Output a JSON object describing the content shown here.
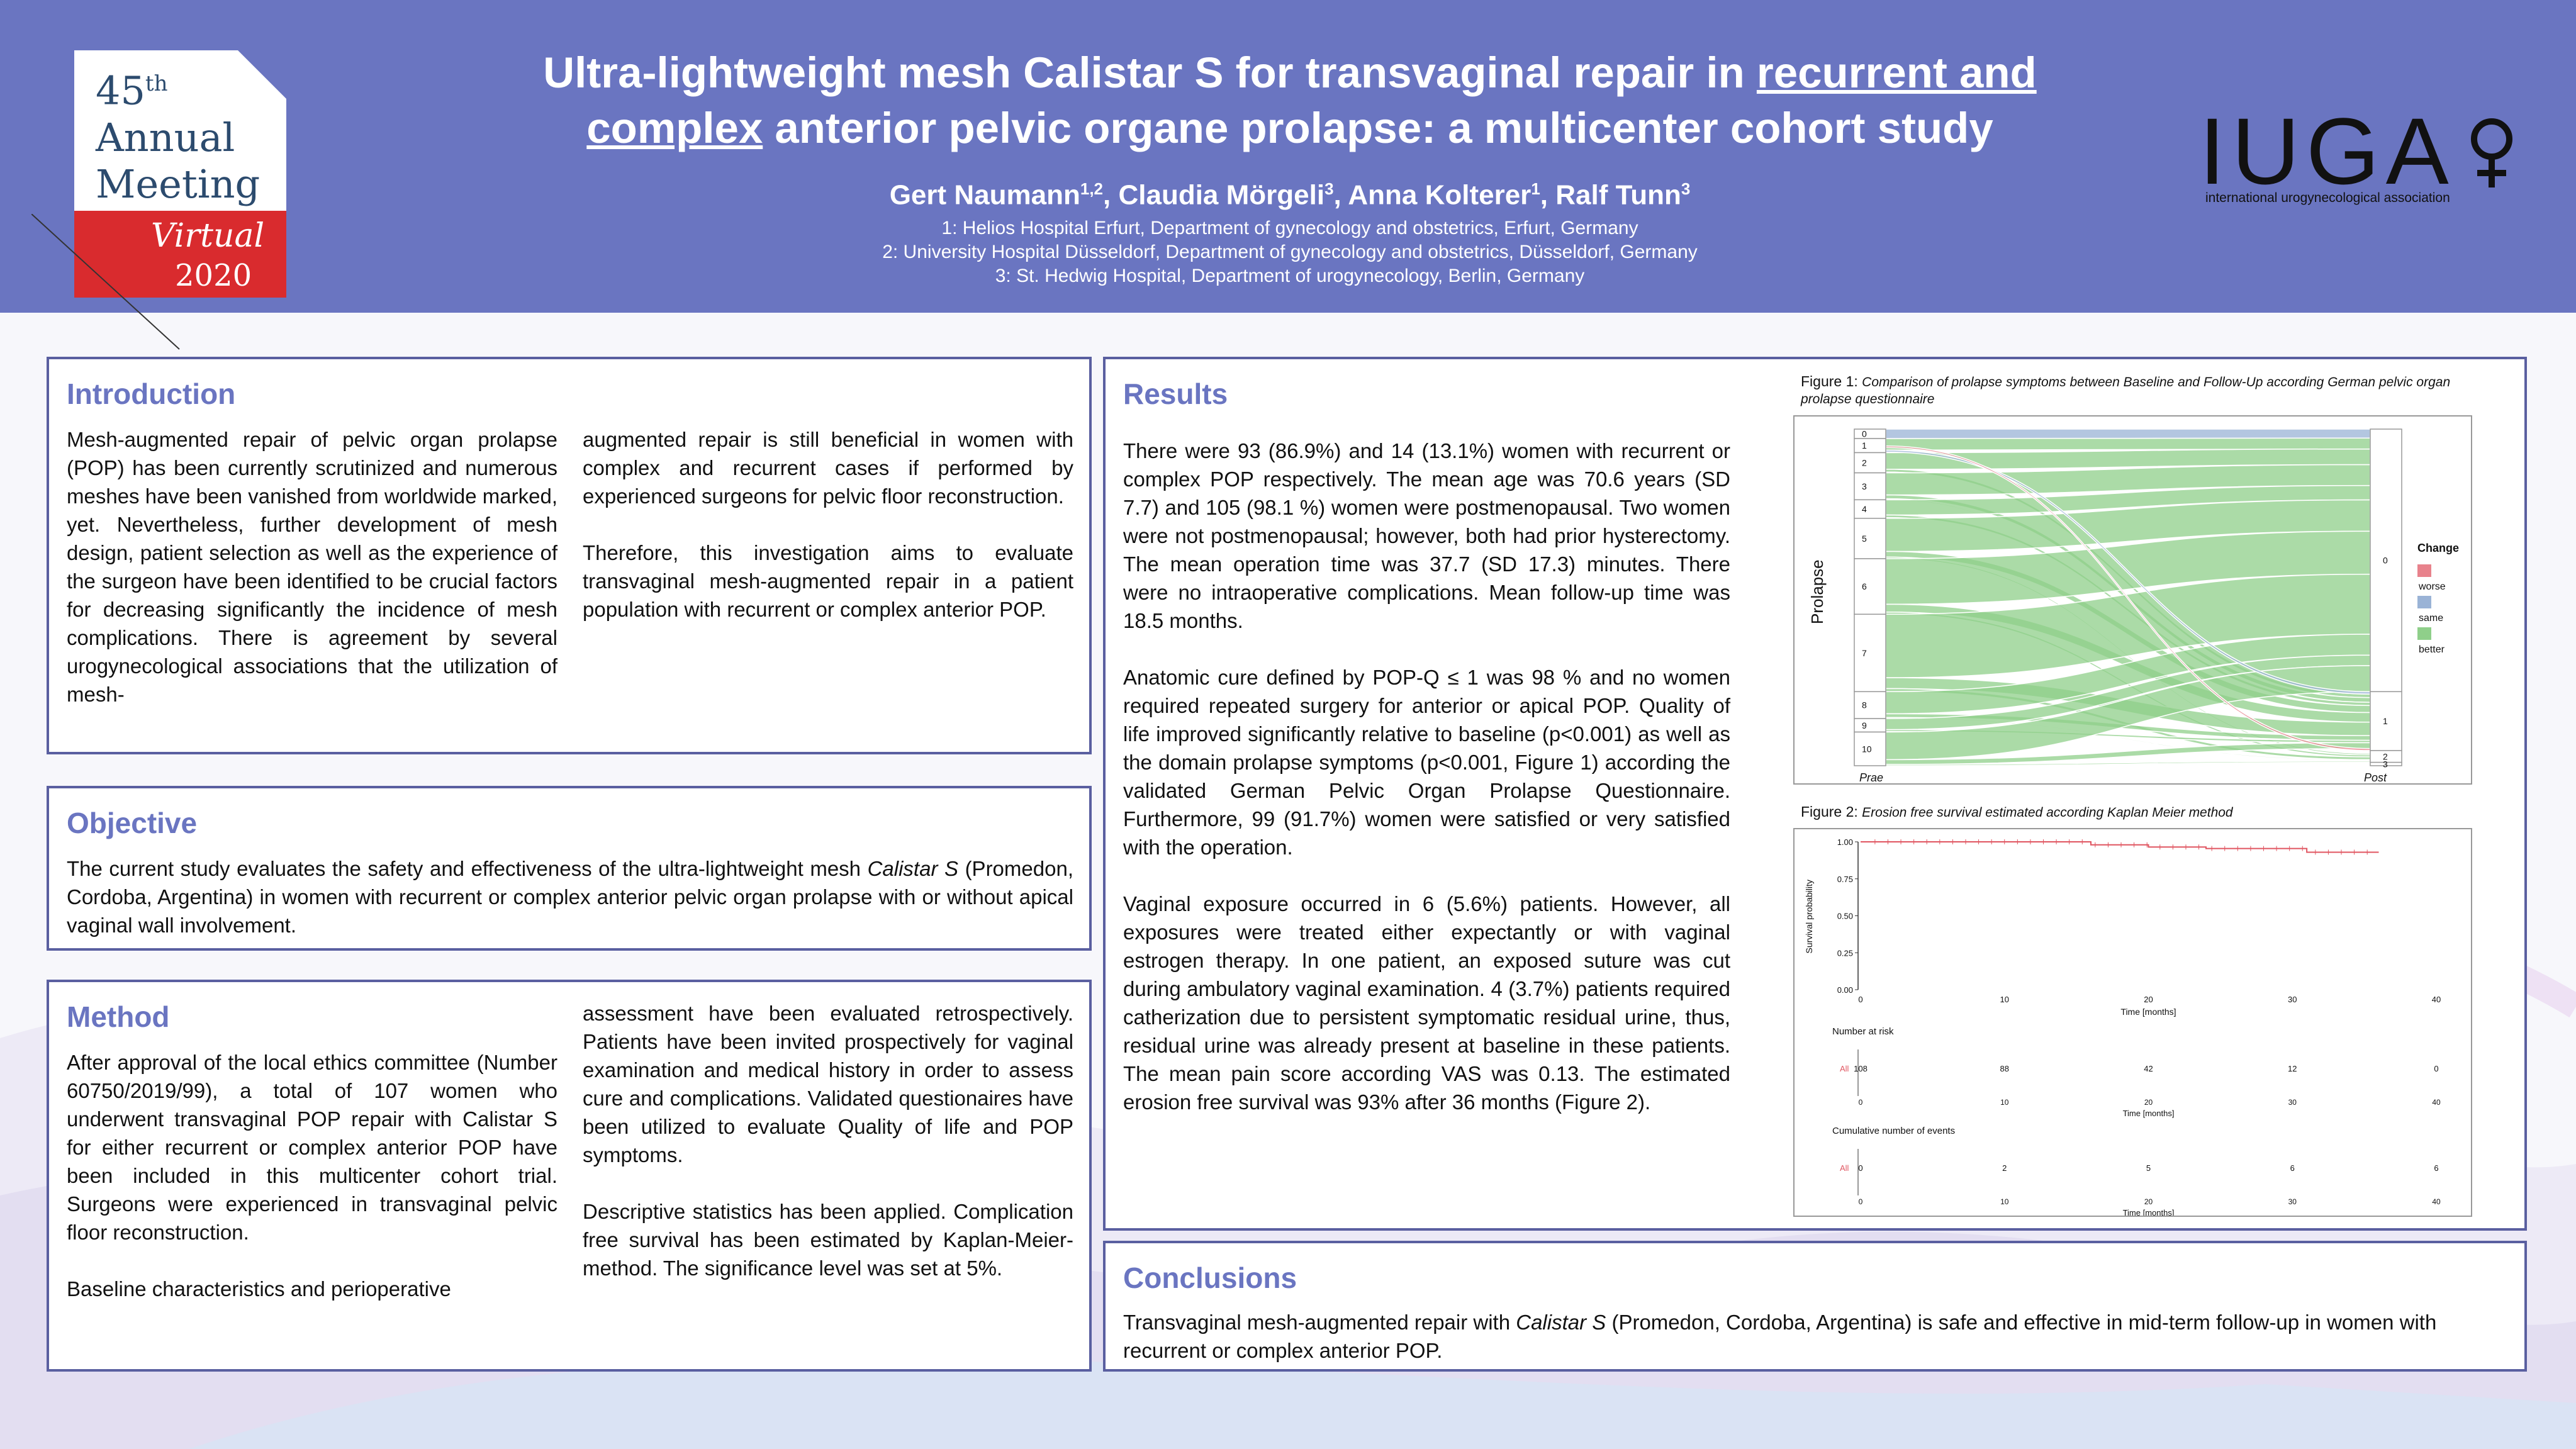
{
  "meeting": {
    "number": "45",
    "ordinal": "th",
    "line1": "Annual",
    "line2": "Meeting",
    "mode": "Virtual",
    "year": "2020"
  },
  "title": {
    "part1": "Ultra-lightweight mesh Calistar S for transvaginal repair in ",
    "underlined1": "recurrent and",
    "underlined2": "complex",
    "part2": " anterior pelvic organe prolapse: a multicenter cohort study"
  },
  "authors": [
    {
      "name": "Gert Naumann",
      "sup": "1,2"
    },
    {
      "name": "Claudia Mörgeli",
      "sup": "3"
    },
    {
      "name": "Anna Kolterer",
      "sup": "1"
    },
    {
      "name": "Ralf Tunn",
      "sup": "3"
    }
  ],
  "affiliations": [
    "1: Helios Hospital Erfurt, Department of gynecology and obstetrics, Erfurt, Germany",
    "2: University Hospital Düsseldorf, Department of gynecology and obstetrics, Düsseldorf, Germany",
    "3: St. Hedwig Hospital, Department of urogynecology, Berlin, Germany"
  ],
  "iuga": {
    "name": "IUGA",
    "tagline": "international urogynecological association"
  },
  "introduction": {
    "heading": "Introduction",
    "col1": "Mesh-augmented repair of pelvic organ prolapse (POP) has been currently scrutinized and numerous meshes have been vanished from worldwide marked, yet. Nevertheless, further development of mesh design, patient selection as well as the experience of the surgeon have been identified to be crucial factors for decreasing significantly the incidence of mesh complications. There is agreement by several urogynecological associations that the utilization of mesh-",
    "col2a": "augmented repair is still beneficial in women with complex and recurrent cases if performed by experienced surgeons for pelvic floor reconstruction.",
    "col2b": "Therefore, this investigation aims to evaluate transvaginal mesh-augmented repair in a patient population with recurrent or complex anterior POP."
  },
  "objective": {
    "heading": "Objective",
    "text_before": "The current study evaluates the safety and effectiveness of the ultra-lightweight mesh ",
    "text_italic": "Calistar S",
    "text_after": " (Promedon, Cordoba, Argentina) in women with recurrent or complex anterior pelvic organ prolapse with or without apical vaginal wall involvement."
  },
  "method": {
    "heading": "Method",
    "col1a": "After approval of the local ethics committee (Number 60750/2019/99), a total of 107 women who underwent transvaginal POP repair with Calistar S for either recurrent or complex anterior POP have been included in this multicenter cohort trial. Surgeons were experienced in transvaginal pelvic floor reconstruction.",
    "col1b": "Baseline characteristics and perioperative",
    "col2a": "assessment have been evaluated retrospectively. Patients have been invited prospectively for vaginal examination and medical history in order to assess cure and complications. Validated questionaires have been utilized to evaluate Quality of life and POP symptoms.",
    "col2b": "Descriptive statistics has been applied. Complication free survival has been estimated by Kaplan-Meier-method. The significance level was set at 5%."
  },
  "results": {
    "heading": "Results",
    "p1": "There were 93 (86.9%) and 14 (13.1%) women with recurrent or complex POP respectively. The mean age was 70.6 years (SD 7.7) and 105 (98.1 %) women were postmenopausal. Two women were not postmenopausal; however, both had prior hysterectomy. The mean operation time was 37.7 (SD 17.3) minutes. There were no intraoperative complications. Mean follow-up time was 18.5 months.",
    "p2": "Anatomic cure defined by POP-Q ≤ 1 was 98 % and no women required repeated surgery for anterior or apical POP. Quality of life improved significantly relative to baseline (p<0.001) as well as the domain prolapse symptoms (p<0.001, Figure 1) according the validated German Pelvic Organ Prolapse Questionnaire. Furthermore, 99 (91.7%) women were satisfied or very satisfied with the operation.",
    "p3": "Vaginal exposure occurred in 6 (5.6%) patients. However, all exposures were treated either expectantly or with vaginal estrogen therapy. In one patient, an exposed suture was cut during ambulatory vaginal examination. 4 (3.7%) patients required catherization due to persistent symptomatic residual urine, thus, residual urine was already present at baseline in these patients. The mean pain score according VAS was 0.13. The estimated erosion free survival was 93% after 36 months (Figure 2)."
  },
  "figure1": {
    "label": "Figure 1:",
    "caption": "Comparison of prolapse symptoms between Baseline and Follow-Up according German pelvic organ prolapse questionnaire"
  },
  "figure2": {
    "label": "Figure 2:",
    "caption": "Erosion free survival estimated according Kaplan Meier method"
  },
  "conclusions": {
    "heading": "Conclusions",
    "text_before": "Transvaginal mesh-augmented repair with ",
    "text_italic": "Calistar S",
    "text_after": " (Promedon, Cordoba, Argentina) is safe and effective in mid-term follow-up in women with recurrent or complex anterior POP."
  },
  "chart_data": [
    {
      "type": "alluvial",
      "ylabel": "Prolapse",
      "axes": [
        "Prae",
        "Post"
      ],
      "prae_levels": [
        "0",
        "1",
        "2",
        "3",
        "4",
        "5",
        "6",
        "7",
        "8",
        "9",
        "10"
      ],
      "post_levels": [
        "0",
        "1",
        "2",
        "3"
      ],
      "legend_title": "Change",
      "legend": [
        {
          "name": "worse",
          "color": "#e8828c"
        },
        {
          "name": "same",
          "color": "#9ab3d6"
        },
        {
          "name": "better",
          "color": "#8fcf8a"
        }
      ]
    },
    {
      "type": "line",
      "ylabel": "Survival probability",
      "xlabel": "Time [months]",
      "ylim": [
        0,
        1
      ],
      "yticks": [
        "0.00",
        "0.25",
        "0.50",
        "0.75",
        "1.00"
      ],
      "xticks": [
        "0",
        "10",
        "20",
        "30",
        "40"
      ],
      "series": [
        {
          "name": "All",
          "color": "#e05560",
          "steps": [
            [
              0,
              1.0
            ],
            [
              8,
              1.0
            ],
            [
              16,
              0.98
            ],
            [
              20,
              0.965
            ],
            [
              24,
              0.955
            ],
            [
              31,
              0.93
            ],
            [
              36,
              0.93
            ]
          ]
        }
      ],
      "risk_table_title": "Number at risk",
      "risk_label": "All",
      "number_at_risk": [
        "108",
        "88",
        "42",
        "12",
        "0"
      ],
      "events_table_title": "Cumulative number of events",
      "cumulative_events": [
        "0",
        "2",
        "5",
        "6",
        "6"
      ]
    }
  ]
}
